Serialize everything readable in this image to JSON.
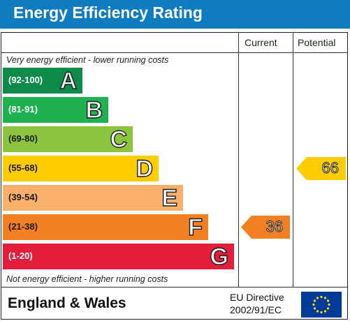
{
  "header": {
    "title": "Energy Efficiency Rating"
  },
  "columns": {
    "current": "Current",
    "potential": "Potential"
  },
  "captions": {
    "top": "Very energy efficient - lower running costs",
    "bottom": "Not energy efficient - higher running costs"
  },
  "chart_data": {
    "type": "bar",
    "bands": [
      {
        "range": "(92-100)",
        "letter": "A",
        "color": "#0e8a4b",
        "range_color": "#ffffff"
      },
      {
        "range": "(81-91)",
        "letter": "B",
        "color": "#1fb14f",
        "range_color": "#ffffff"
      },
      {
        "range": "(69-80)",
        "letter": "C",
        "color": "#8cc43e",
        "range_color": "#1a1a1a"
      },
      {
        "range": "(55-68)",
        "letter": "D",
        "color": "#ffcc00",
        "range_color": "#1a1a1a"
      },
      {
        "range": "(39-54)",
        "letter": "E",
        "color": "#f8b06a",
        "range_color": "#1a1a1a"
      },
      {
        "range": "(21-38)",
        "letter": "F",
        "color": "#f28023",
        "range_color": "#1a1a1a"
      },
      {
        "range": "(1-20)",
        "letter": "G",
        "color": "#e31d3c",
        "range_color": "#ffffff"
      }
    ],
    "current": {
      "value": 36,
      "color": "#f28023"
    },
    "potential": {
      "value": 66,
      "color": "#ffcc00"
    }
  },
  "footer": {
    "region": "England & Wales",
    "directive_line1": "EU Directive",
    "directive_line2": "2002/91/EC"
  },
  "icons": {
    "flag": "eu-flag-icon"
  }
}
